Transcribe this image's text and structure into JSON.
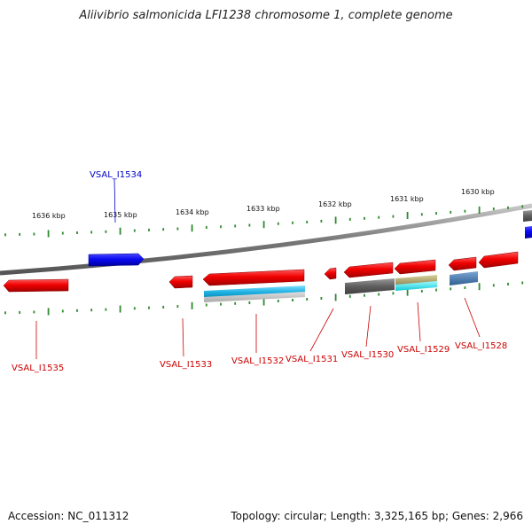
{
  "title": "Aliivibrio salmonicida LFI1238 chromosome 1, complete genome",
  "footer": {
    "accession": "Accession: NC_011312",
    "summary": "Topology: circular; Length: 3,325,165 bp; Genes: 2,966"
  },
  "colors": {
    "backbone": "#888888",
    "tick": "#2f8a2f",
    "forward_gene": "#e00000",
    "reverse_gene": "#1010e0",
    "cds_cyan": "#23b7e0",
    "cds_gray": "#666666",
    "cds_olive": "#b0a873",
    "cds_aqua": "#22e6e6",
    "cds_steel": "#4477aa",
    "label_red": "#cc0000",
    "label_blue": "#0000cc"
  },
  "scale": {
    "unit": "kbp",
    "ticks": [
      {
        "label": "1636 kbp"
      },
      {
        "label": "1635 kbp"
      },
      {
        "label": "1634 kbp"
      },
      {
        "label": "1633 kbp"
      },
      {
        "label": "1632 kbp"
      },
      {
        "label": "1631 kbp"
      },
      {
        "label": "1630 kbp"
      }
    ]
  },
  "genes": [
    {
      "name": "VSAL_I1534",
      "strand": "reverse"
    },
    {
      "name": "VSAL_I1535",
      "strand": "forward"
    },
    {
      "name": "VSAL_I1533",
      "strand": "forward"
    },
    {
      "name": "VSAL_I1532",
      "strand": "forward"
    },
    {
      "name": "VSAL_I1531",
      "strand": "forward"
    },
    {
      "name": "VSAL_I1530",
      "strand": "forward"
    },
    {
      "name": "VSAL_I1529",
      "strand": "forward"
    },
    {
      "name": "VSAL_I1528",
      "strand": "forward"
    }
  ]
}
